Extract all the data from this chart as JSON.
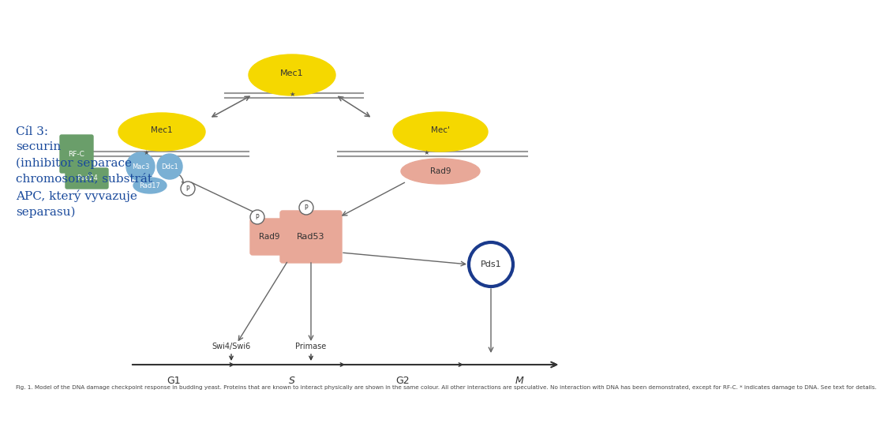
{
  "title_text": "Cíl 3:\nsecurin\n(inhibitor separace\nchromosomů, substrát\nAPC, který vyvazuje\nseparasu)",
  "title_color": "#1a4a9c",
  "title_fontsize": 11,
  "bg_color": "#ffffff",
  "fig_caption": "Fig. 1. Model of the DNA damage checkpoint response in budding yeast. Proteins that are known to interact physically are shown in the same colour. All other interactions are speculative. No interaction with DNA has been demonstrated, except for RF-C. * indicates damage to DNA. See text for details.",
  "yellow_color": "#f5d800",
  "green_color": "#6a9e6a",
  "blue_clamp_color": "#7ab0d4",
  "salmon_color": "#e8a898",
  "pds1_circle_color": "#1a3a8c",
  "arrow_color": "#666666",
  "dna_line_color": "#999999",
  "label_color": "#333333"
}
